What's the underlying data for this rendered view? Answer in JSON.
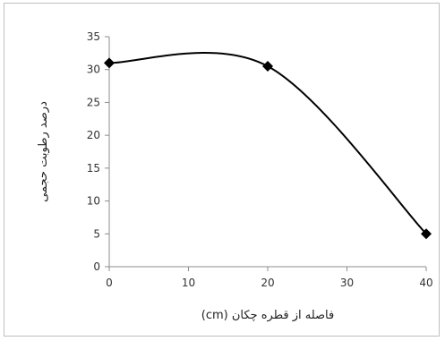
{
  "chart_data": {
    "type": "line",
    "title": "",
    "xlabel": "فاصله از قطره چکان (cm)",
    "ylabel": "درصد رطوبت حجمی",
    "x": [
      0,
      20,
      40
    ],
    "series": [
      {
        "values": [
          31,
          30.5,
          5
        ]
      }
    ],
    "xlim": [
      0,
      40
    ],
    "ylim": [
      0,
      35
    ],
    "xticks": [
      0,
      10,
      20,
      30,
      40
    ],
    "yticks": [
      0,
      5,
      10,
      15,
      20,
      25,
      30,
      35
    ],
    "grid": false,
    "legend": "none",
    "smooth": true,
    "marker": "diamond",
    "line_color": "#000000",
    "marker_color": "#000000"
  }
}
